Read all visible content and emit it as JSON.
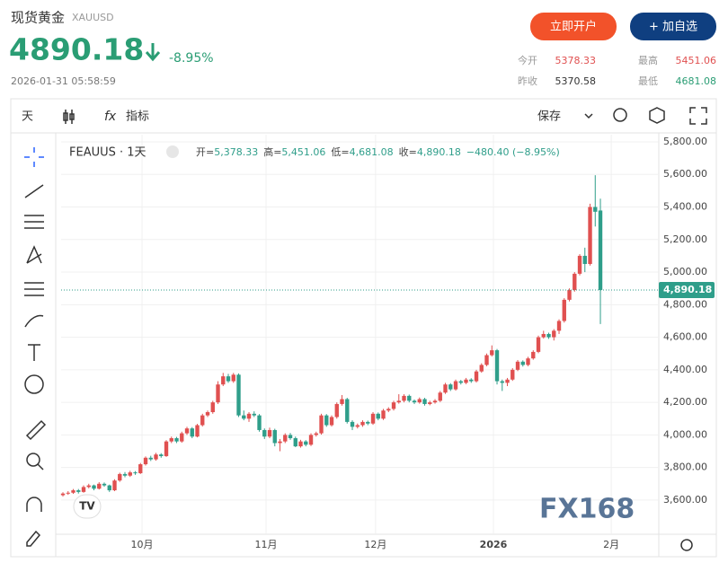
{
  "header": {
    "name": "现货黄金",
    "symbol": "XAUUSD",
    "price": "4890.18",
    "change": "-8.95%",
    "time": "2026-01-31 05:58:59",
    "open_account": "立即开户",
    "add_watch": "+ 加自选",
    "stats": [
      {
        "label": "今开",
        "value": "5378.33"
      },
      {
        "label": "最高",
        "value": "5451.06"
      },
      {
        "label": "昨收",
        "value": "5370.58"
      },
      {
        "label": "最低",
        "value": "4681.08"
      }
    ]
  },
  "toolbar": {
    "interval": "天",
    "indicators": "指标",
    "save": "保存"
  },
  "chart_data": {
    "type": "candlestick",
    "legend": {
      "symbol": "FEAUUS · 1天",
      "ohlc": [
        {
          "label": "开=",
          "value": "5,378.33"
        },
        {
          "label": "高=",
          "value": "5,451.06"
        },
        {
          "label": "低=",
          "value": "4,681.08"
        },
        {
          "label": "收=",
          "value": "4,890.18"
        }
      ],
      "change": "−480.40 (−8.95%)"
    },
    "up_color": "#e05050",
    "down_color": "#2f9e8a",
    "ylim": [
      3390,
      5844
    ],
    "yticks": [
      {
        "value": 3600,
        "label": "3,600.00"
      },
      {
        "value": 3800,
        "label": "3,800.00"
      },
      {
        "value": 4000,
        "label": "4,000.00"
      },
      {
        "value": 4200,
        "label": "4,200.00"
      },
      {
        "value": 4400,
        "label": "4,400.00"
      },
      {
        "value": 4600,
        "label": "4,600.00"
      },
      {
        "value": 4800,
        "label": "4,800.00"
      },
      {
        "value": 5000,
        "label": "5,000.00"
      },
      {
        "value": 5200,
        "label": "5,200.00"
      },
      {
        "value": 5400,
        "label": "5,400.00"
      },
      {
        "value": 5600,
        "label": "5,600.00"
      },
      {
        "value": 5800,
        "label": "5,800.00"
      }
    ],
    "xlim": [
      -0.35,
      115.3
    ],
    "xticks": [
      {
        "value": 15.3,
        "label": "10月"
      },
      {
        "value": 39.3,
        "label": "11月"
      },
      {
        "value": 60.5,
        "label": "12月"
      },
      {
        "value": 83.3,
        "label": "2026"
      },
      {
        "value": 106.1,
        "label": "2月"
      }
    ],
    "last_price": {
      "value": 4890.18,
      "label": "4,890.18"
    },
    "watermark": "FX168",
    "candles": [
      [
        3630,
        3648,
        3622,
        3640
      ],
      [
        3640,
        3655,
        3632,
        3645
      ],
      [
        3645,
        3668,
        3638,
        3660
      ],
      [
        3660,
        3668,
        3640,
        3650
      ],
      [
        3650,
        3690,
        3645,
        3680
      ],
      [
        3680,
        3700,
        3672,
        3690
      ],
      [
        3690,
        3695,
        3660,
        3670
      ],
      [
        3670,
        3710,
        3665,
        3700
      ],
      [
        3700,
        3708,
        3682,
        3690
      ],
      [
        3690,
        3695,
        3650,
        3660
      ],
      [
        3660,
        3728,
        3655,
        3720
      ],
      [
        3720,
        3768,
        3712,
        3760
      ],
      [
        3760,
        3772,
        3740,
        3750
      ],
      [
        3750,
        3780,
        3742,
        3770
      ],
      [
        3770,
        3778,
        3755,
        3765
      ],
      [
        3765,
        3828,
        3760,
        3820
      ],
      [
        3820,
        3868,
        3812,
        3860
      ],
      [
        3860,
        3872,
        3840,
        3850
      ],
      [
        3850,
        3890,
        3842,
        3880
      ],
      [
        3880,
        3888,
        3860,
        3870
      ],
      [
        3870,
        3968,
        3865,
        3960
      ],
      [
        3960,
        3990,
        3950,
        3980
      ],
      [
        3980,
        3988,
        3950,
        3960
      ],
      [
        3960,
        4020,
        3952,
        4010
      ],
      [
        4010,
        4050,
        4000,
        4040
      ],
      [
        4040,
        4048,
        3980,
        3990
      ],
      [
        3990,
        4068,
        3985,
        4060
      ],
      [
        4060,
        4130,
        4052,
        4120
      ],
      [
        4120,
        4150,
        4110,
        4140
      ],
      [
        4140,
        4210,
        4130,
        4200
      ],
      [
        4200,
        4330,
        4190,
        4310
      ],
      [
        4310,
        4381,
        4300,
        4360
      ],
      [
        4360,
        4375,
        4320,
        4330
      ],
      [
        4330,
        4381,
        4320,
        4370
      ],
      [
        4370,
        4378,
        4110,
        4120
      ],
      [
        4120,
        4150,
        4090,
        4100
      ],
      [
        4100,
        4140,
        4080,
        4130
      ],
      [
        4130,
        4145,
        4110,
        4120
      ],
      [
        4120,
        4128,
        4020,
        4030
      ],
      [
        4030,
        4040,
        3975,
        3990
      ],
      [
        3990,
        4045,
        3980,
        4030
      ],
      [
        4030,
        4038,
        3930,
        3950
      ],
      [
        3950,
        3975,
        3900,
        3960
      ],
      [
        3960,
        4010,
        3950,
        4000
      ],
      [
        4000,
        4012,
        3970,
        3980
      ],
      [
        3980,
        3990,
        3925,
        3930
      ],
      [
        3930,
        3970,
        3922,
        3960
      ],
      [
        3960,
        3968,
        3930,
        3940
      ],
      [
        3940,
        4010,
        3932,
        4000
      ],
      [
        4000,
        4020,
        3990,
        4010
      ],
      [
        4010,
        4130,
        4002,
        4120
      ],
      [
        4120,
        4128,
        4050,
        4060
      ],
      [
        4060,
        4120,
        4052,
        4110
      ],
      [
        4110,
        4200,
        4100,
        4190
      ],
      [
        4190,
        4245,
        4180,
        4220
      ],
      [
        4220,
        4228,
        4070,
        4080
      ],
      [
        4080,
        4090,
        4030,
        4050
      ],
      [
        4050,
        4070,
        4040,
        4060
      ],
      [
        4060,
        4090,
        4050,
        4080
      ],
      [
        4080,
        4088,
        4060,
        4070
      ],
      [
        4070,
        4140,
        4062,
        4130
      ],
      [
        4130,
        4138,
        4090,
        4100
      ],
      [
        4100,
        4160,
        4092,
        4150
      ],
      [
        4150,
        4170,
        4140,
        4160
      ],
      [
        4160,
        4210,
        4150,
        4200
      ],
      [
        4200,
        4250,
        4192,
        4210
      ],
      [
        4210,
        4250,
        4200,
        4240
      ],
      [
        4240,
        4248,
        4200,
        4210
      ],
      [
        4210,
        4218,
        4190,
        4200
      ],
      [
        4200,
        4230,
        4192,
        4220
      ],
      [
        4220,
        4228,
        4180,
        4190
      ],
      [
        4190,
        4210,
        4182,
        4200
      ],
      [
        4200,
        4220,
        4192,
        4210
      ],
      [
        4210,
        4270,
        4202,
        4260
      ],
      [
        4260,
        4320,
        4252,
        4310
      ],
      [
        4310,
        4318,
        4270,
        4280
      ],
      [
        4280,
        4340,
        4272,
        4330
      ],
      [
        4330,
        4338,
        4310,
        4320
      ],
      [
        4320,
        4350,
        4312,
        4340
      ],
      [
        4340,
        4348,
        4320,
        4330
      ],
      [
        4330,
        4400,
        4322,
        4390
      ],
      [
        4390,
        4440,
        4382,
        4430
      ],
      [
        4430,
        4500,
        4422,
        4490
      ],
      [
        4490,
        4550,
        4482,
        4520
      ],
      [
        4520,
        4528,
        4310,
        4330
      ],
      [
        4330,
        4340,
        4270,
        4320
      ],
      [
        4320,
        4350,
        4300,
        4340
      ],
      [
        4340,
        4410,
        4332,
        4400
      ],
      [
        4400,
        4460,
        4392,
        4450
      ],
      [
        4450,
        4458,
        4420,
        4430
      ],
      [
        4430,
        4480,
        4422,
        4470
      ],
      [
        4470,
        4520,
        4462,
        4510
      ],
      [
        4510,
        4610,
        4502,
        4600
      ],
      [
        4600,
        4640,
        4592,
        4620
      ],
      [
        4620,
        4628,
        4590,
        4600
      ],
      [
        4600,
        4650,
        4580,
        4640
      ],
      [
        4640,
        4710,
        4620,
        4700
      ],
      [
        4700,
        4840,
        4690,
        4830
      ],
      [
        4830,
        4900,
        4820,
        4890
      ],
      [
        4890,
        5000,
        4880,
        4990
      ],
      [
        4990,
        5110,
        4980,
        5100
      ],
      [
        5100,
        5150,
        5000,
        5050
      ],
      [
        5050,
        5420,
        5040,
        5400
      ],
      [
        5400,
        5595,
        5280,
        5370.58
      ],
      [
        5378.33,
        5451.06,
        4681.08,
        4890.18
      ]
    ]
  }
}
